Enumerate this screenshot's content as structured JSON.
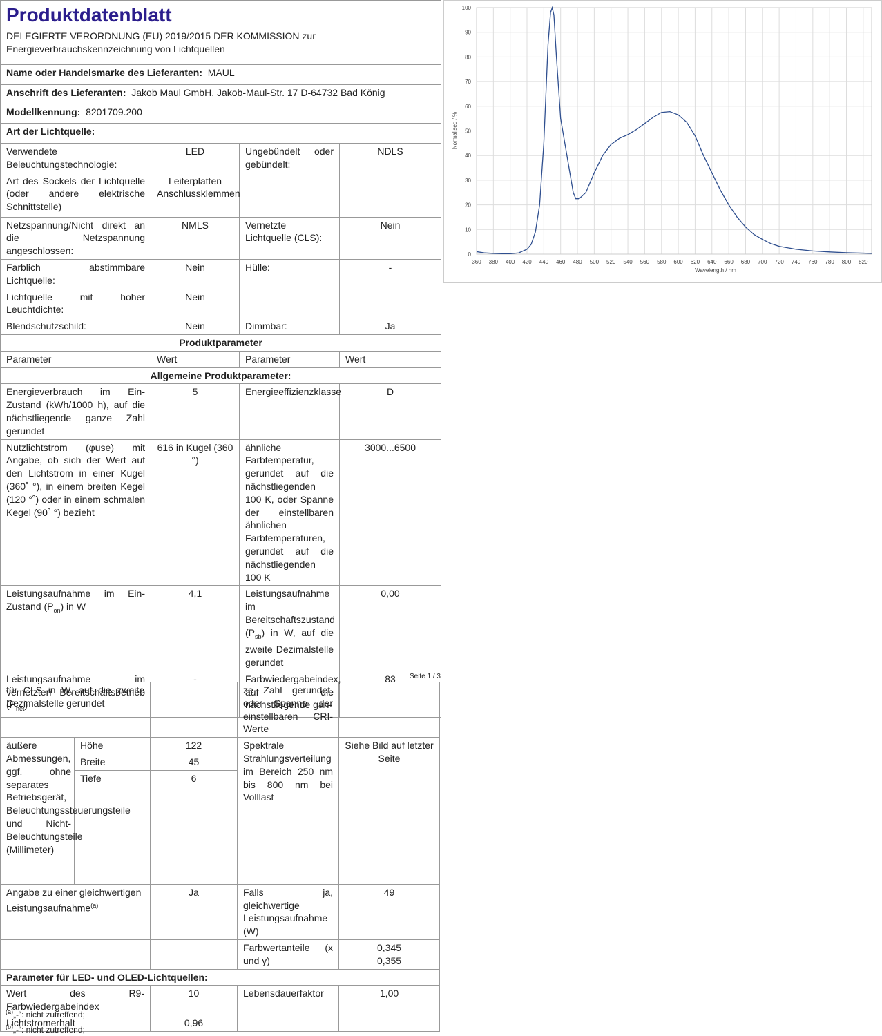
{
  "header": {
    "title": "Produktdatenblatt",
    "regulation": "DELEGIERTE VERORDNUNG (EU) 2019/2015 DER KOMMISSION zur Energieverbrauchskennzeichnung von Lichtquellen"
  },
  "supplier": [
    {
      "label": "Name oder Handelsmarke des Lieferanten:",
      "value": "MAUL"
    },
    {
      "label": "Anschrift des Lieferanten:",
      "value": "Jakob Maul GmbH, Jakob-Maul-Str. 17 D-64732 Bad König"
    },
    {
      "label": "Modellkennung:",
      "value": "8201709.200"
    }
  ],
  "light_source_heading": "Art der Lichtquelle:",
  "light_source_rows": [
    {
      "p1": "Verwendete Beleuchtungstechnologie:",
      "v1": "LED",
      "p2": "Ungebündelt oder gebündelt:",
      "v2": "NDLS"
    },
    {
      "p1": "Art des Sockels der Lichtquelle (oder andere elektrische Schnittstelle)",
      "v1": "Leiterplatten Anschlussklemmen"
    },
    {
      "p1": "Netzspannung/Nicht direkt an die Netzspannung angeschlossen:",
      "v1": "NMLS",
      "p2": "Vernetzte Lichtquelle (CLS):",
      "v2": "Nein"
    },
    {
      "p1": "Farblich abstimmbare Lichtquelle:",
      "v1": "Nein",
      "p2": "Hülle:",
      "v2": "-"
    },
    {
      "p1": "Lichtquelle mit hoher Leuchtdichte:",
      "v1": "Nein"
    },
    {
      "p1": "Blendschutzschild:",
      "v1": "Nein",
      "p2": "Dimmbar:",
      "v2": "Ja"
    }
  ],
  "product_parameters_heading": "Produktparameter",
  "column_headers": [
    "Parameter",
    "Wert",
    "Parameter",
    "Wert"
  ],
  "general_heading": "Allgemeine Produktparameter:",
  "general_rows": [
    {
      "p1": "Energieverbrauch im Ein-Zustand (kWh/1000 h), auf die nächstliegende ganze Zahl gerundet",
      "v1": "5",
      "p2": "Energieeffizienzklasse",
      "v2": "D"
    },
    {
      "p1": "Nutzlichtstrom (φuse) mit Angabe, ob sich der Wert auf den Lichtstrom in einer Kugel (360˚ °), in einem breiten Kegel (120 °˚) oder in einem schmalen Kegel (90˚ °) bezieht",
      "v1": "616 in Kugel (360 °)",
      "p2": "ähnliche Farbtemperatur, gerundet auf die nächstliegenden 100 K, oder Spanne der einstellbaren ähnlichen Farbtemperaturen, gerundet auf die nächstliegenden 100 K",
      "v2": "3000...6500"
    },
    {
      "p1": {
        "text": "Leistungsaufnahme im Ein-Zustand (P",
        "sub": "on",
        "after": ") in W"
      },
      "v1": "4,1",
      "p2": {
        "text": "Leistungsaufnahme im Bereitschaftszustand (P",
        "sub": "sb",
        "after": ") in W, auf die zweite Dezimalstelle gerundet"
      },
      "v2": "0,00"
    },
    {
      "p1": {
        "text": "Leistungsaufnahme im vernetzten Bereitschaftsbetrieb (P",
        "sub": "net",
        "after": ")"
      },
      "v1": "-",
      "p2": "Farbwiedergabeindex, auf die nächstliegende gan-",
      "v2": "83"
    }
  ],
  "page_label": "Seite 1 / 3",
  "continued_row": {
    "p1": "für CLS in W, auf die zweite Dezimalstelle gerundet",
    "p2": "ze Zahl gerundet, oder Spanne der einstellbaren CRI-Werte"
  },
  "dimensions": {
    "label": "äußere Abmessungen, ggf. ohne separates Betriebsgerät, Beleuchtungssteuerungsteile und Nicht-Beleuchtungsteile (Millimeter)",
    "items": [
      {
        "name": "Höhe",
        "value": "122"
      },
      {
        "name": "Breite",
        "value": "45"
      },
      {
        "name": "Tiefe",
        "value": "6"
      }
    ],
    "p2": "Spektrale Strahlungsverteilung im Bereich 250 nm bis 800 nm bei Volllast",
    "v2": "Siehe Bild auf letzter Seite"
  },
  "equivalent_row": {
    "p1": {
      "text": "Angabe zu einer gleichwertigen Leistungsaufnahme",
      "sup": "(a)"
    },
    "v1": "Ja",
    "p2": "Falls ja, gleichwertige Leistungsaufnahme (W)",
    "v2": "49"
  },
  "chromaticity_row": {
    "p2": "Farbwertanteile (x und y)",
    "v2": [
      "0,345",
      "0,355"
    ]
  },
  "led_heading": "Parameter für LED- und OLED-Lichtquellen:",
  "led_rows": [
    {
      "p1": "Wert des R9-Farbwiedergabeindex",
      "v1": "10",
      "p2": "Lebensdauerfaktor",
      "v2": "1,00"
    },
    {
      "p1": "Lichtstromerhalt",
      "v1": "0,96"
    }
  ],
  "footnotes": [
    {
      "mark": "(a)",
      "text": "„-“: nicht zutreffend;"
    },
    {
      "mark": "(b)",
      "text": "„-“: nicht zutreffend;"
    }
  ],
  "chart_data": {
    "type": "line",
    "x_label": "Wavelength / nm",
    "y_label": "Normalised / %",
    "color": "#2f4f8f",
    "grid": true,
    "x": [
      360,
      370,
      380,
      390,
      400,
      410,
      420,
      425,
      430,
      435,
      440,
      445,
      448,
      450,
      452,
      455,
      460,
      465,
      470,
      475,
      478,
      482,
      490,
      500,
      510,
      520,
      530,
      540,
      550,
      560,
      570,
      580,
      590,
      600,
      610,
      620,
      630,
      640,
      650,
      660,
      670,
      680,
      690,
      700,
      710,
      720,
      740,
      760,
      780,
      800,
      820,
      830
    ],
    "values": [
      1,
      0.5,
      0.3,
      0.2,
      0.2,
      0.5,
      2,
      4,
      9,
      20,
      45,
      85,
      98,
      100,
      97,
      80,
      55,
      45,
      35,
      25,
      22.5,
      22.5,
      25,
      33,
      40,
      44.5,
      47,
      48.5,
      50.5,
      53,
      55.5,
      57.5,
      57.8,
      56.5,
      53.5,
      48,
      40,
      33,
      26,
      20,
      15,
      11,
      8,
      6,
      4.3,
      3.2,
      2,
      1.3,
      0.9,
      0.6,
      0.4,
      0.3
    ],
    "xlim": [
      360,
      830
    ],
    "ylim": [
      0,
      100
    ],
    "xticks": [
      360,
      380,
      400,
      420,
      440,
      460,
      480,
      500,
      520,
      540,
      560,
      580,
      600,
      620,
      640,
      660,
      680,
      700,
      720,
      740,
      760,
      780,
      800,
      820
    ],
    "yticks": [
      0,
      10,
      20,
      30,
      40,
      50,
      60,
      70,
      80,
      90,
      100
    ]
  }
}
